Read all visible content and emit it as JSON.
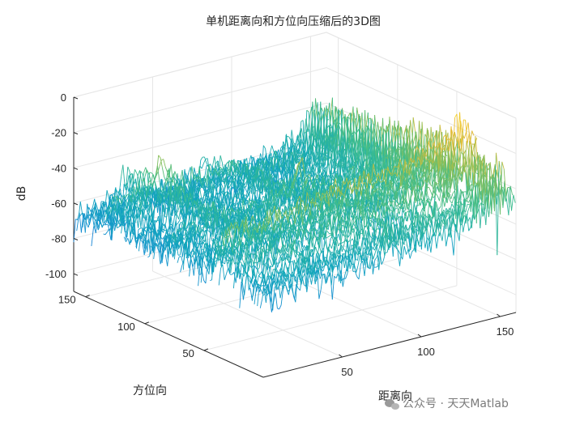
{
  "chart_data": {
    "type": "surface-mesh-3d",
    "title": "单机距离向和方位向压缩后的3D图",
    "xlabel": "距离向",
    "ylabel": "方位向",
    "zlabel": "dB",
    "xlim": [
      0,
      160
    ],
    "ylim": [
      0,
      160
    ],
    "zlim": [
      -110,
      0
    ],
    "x_ticks": [
      50,
      100,
      150
    ],
    "y_ticks": [
      50,
      100,
      150
    ],
    "z_ticks": [
      0,
      -20,
      -40,
      -60,
      -80,
      -100
    ],
    "grid": true,
    "colormap": "parula",
    "targets": [
      {
        "x": 32,
        "y": 128,
        "peak_db": -31
      },
      {
        "x": 82,
        "y": 78,
        "peak_db": -32
      },
      {
        "x": 150,
        "y": 34,
        "peak_db": -5
      }
    ],
    "clutter_floor_db": -75
  },
  "watermark": {
    "icon": "wechat-icon",
    "text": "公众号 · 天天Matlab"
  }
}
